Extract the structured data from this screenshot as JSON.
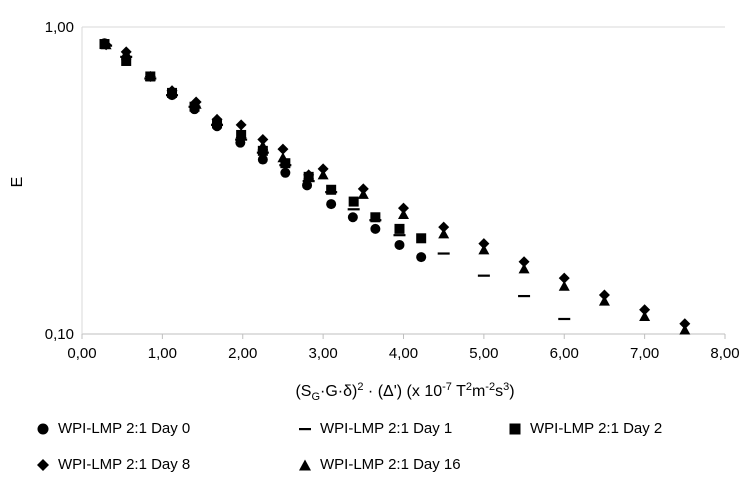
{
  "chart_data": {
    "type": "scatter",
    "title": "",
    "xlabel": "(S_G·G·δ)²·(Δ') (x 10⁻⁷ T²m⁻²s³)",
    "xlabel_parts": {
      "open": "(S",
      "sub_g": "G",
      "mid": "·G·δ)",
      "sq": "2",
      "mid2": " · (Δ') (x 10",
      "exp": "-7",
      "t": " T",
      "t_exp": "2",
      "m": "m",
      "m_exp": "-2",
      "s": "s",
      "s_exp": "3",
      "close": ")"
    },
    "ylabel": "E",
    "xlim": [
      0,
      8
    ],
    "ylim": [
      0.1,
      1
    ],
    "yscale": "log",
    "grid": "horizontal",
    "legend_position": "bottom",
    "x_ticks": [
      "0,00",
      "1,00",
      "2,00",
      "3,00",
      "4,00",
      "5,00",
      "6,00",
      "7,00",
      "8,00"
    ],
    "y_ticks": [
      "0,10",
      "1,00"
    ],
    "series": [
      {
        "name": "WPI-LMP 2:1 Day 0",
        "marker": "circle",
        "x": [
          0.28,
          0.55,
          0.85,
          1.12,
          1.4,
          1.68,
          1.97,
          2.25,
          2.53,
          2.8,
          3.1,
          3.37,
          3.65,
          3.95,
          4.22
        ],
        "y": [
          0.885,
          0.785,
          0.69,
          0.6,
          0.54,
          0.475,
          0.42,
          0.37,
          0.335,
          0.305,
          0.265,
          0.24,
          0.22,
          0.195,
          0.178
        ]
      },
      {
        "name": "WPI-LMP 2:1 Day 1",
        "marker": "dash",
        "x": [
          0.3,
          0.55,
          0.85,
          1.12,
          1.4,
          1.68,
          1.98,
          2.25,
          2.53,
          2.82,
          3.1,
          3.38,
          3.65,
          3.95,
          4.5,
          5.0,
          5.5,
          6.0
        ],
        "y": [
          0.87,
          0.8,
          0.68,
          0.6,
          0.55,
          0.48,
          0.43,
          0.39,
          0.355,
          0.315,
          0.29,
          0.255,
          0.235,
          0.21,
          0.183,
          0.155,
          0.133,
          0.112
        ]
      },
      {
        "name": "WPI-LMP 2:1 Day 2",
        "marker": "square",
        "x": [
          0.28,
          0.55,
          0.85,
          1.12,
          1.4,
          1.68,
          1.98,
          2.25,
          2.53,
          2.82,
          3.1,
          3.38,
          3.65,
          3.95,
          4.22
        ],
        "y": [
          0.88,
          0.775,
          0.69,
          0.61,
          0.55,
          0.485,
          0.445,
          0.395,
          0.36,
          0.325,
          0.295,
          0.27,
          0.24,
          0.22,
          0.205
        ]
      },
      {
        "name": "WPI-LMP 2:1 Day 8",
        "marker": "diamond",
        "x": [
          0.3,
          0.55,
          0.85,
          1.12,
          1.42,
          1.68,
          1.98,
          2.25,
          2.5,
          2.82,
          3.0,
          3.5,
          4.0,
          4.5,
          5.0,
          5.5,
          6.0,
          6.5,
          7.0,
          7.5
        ],
        "y": [
          0.875,
          0.83,
          0.69,
          0.62,
          0.57,
          0.5,
          0.48,
          0.43,
          0.4,
          0.33,
          0.345,
          0.297,
          0.257,
          0.223,
          0.197,
          0.172,
          0.152,
          0.134,
          0.12,
          0.108
        ]
      },
      {
        "name": "WPI-LMP 2:1 Day 16",
        "marker": "triangle",
        "x": [
          0.3,
          0.55,
          0.85,
          1.12,
          1.42,
          1.68,
          1.98,
          2.25,
          2.5,
          2.82,
          3.0,
          3.5,
          4.0,
          4.5,
          5.0,
          5.5,
          6.0,
          6.5,
          7.0,
          7.5
        ],
        "y": [
          0.875,
          0.82,
          0.69,
          0.62,
          0.56,
          0.5,
          0.45,
          0.41,
          0.375,
          0.33,
          0.33,
          0.285,
          0.245,
          0.212,
          0.188,
          0.163,
          0.143,
          0.128,
          0.114,
          0.103
        ]
      }
    ]
  }
}
